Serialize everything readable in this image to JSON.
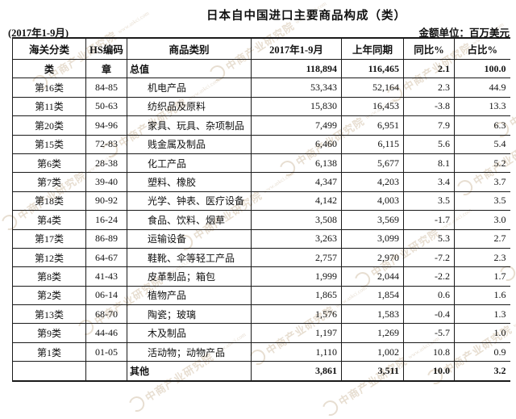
{
  "title": "日本自中国进口主要商品构成（类）",
  "period": "(2017年1-9月)",
  "unit_label": "金额单位：百万美元",
  "watermark": {
    "text": "中商产业研究院",
    "subtext": "www.askci.com",
    "color": "#c7b194"
  },
  "chart_data": {
    "type": "table",
    "title": "日本自中国进口主要商品构成（类）",
    "subtitle": "(2017年1-9月) 金额单位：百万美元",
    "columns": [
      "海关分类",
      "HS编码",
      "商品类别",
      "2017年1-9月",
      "上年同期",
      "同比%",
      "占比%"
    ],
    "rows": [
      {
        "cat": "类",
        "hs": "章",
        "label": "总值",
        "cur": "118,894",
        "prev": "116,465",
        "yoy": "2.1",
        "share": "100.0",
        "bold": true,
        "tight": true
      },
      {
        "cat": "第16类",
        "hs": "84-85",
        "label": "机电产品",
        "cur": "53,343",
        "prev": "52,164",
        "yoy": "2.3",
        "share": "44.9"
      },
      {
        "cat": "第11类",
        "hs": "50-63",
        "label": "纺织品及原料",
        "cur": "15,830",
        "prev": "16,453",
        "yoy": "-3.8",
        "share": "13.3"
      },
      {
        "cat": "第20类",
        "hs": "94-96",
        "label": "家具、玩具、杂项制品",
        "cur": "7,499",
        "prev": "6,951",
        "yoy": "7.9",
        "share": "6.3"
      },
      {
        "cat": "第15类",
        "hs": "72-83",
        "label": "贱金属及制品",
        "cur": "6,460",
        "prev": "6,115",
        "yoy": "5.6",
        "share": "5.4"
      },
      {
        "cat": "第6类",
        "hs": "28-38",
        "label": "化工产品",
        "cur": "6,138",
        "prev": "5,677",
        "yoy": "8.1",
        "share": "5.2"
      },
      {
        "cat": "第7类",
        "hs": "39-40",
        "label": "塑料、橡胶",
        "cur": "4,347",
        "prev": "4,203",
        "yoy": "3.4",
        "share": "3.7"
      },
      {
        "cat": "第18类",
        "hs": "90-92",
        "label": "光学、钟表、医疗设备",
        "cur": "4,142",
        "prev": "4,003",
        "yoy": "3.5",
        "share": "3.5"
      },
      {
        "cat": "第4类",
        "hs": "16-24",
        "label": "食品、饮料、烟草",
        "cur": "3,508",
        "prev": "3,569",
        "yoy": "-1.7",
        "share": "3.0"
      },
      {
        "cat": "第17类",
        "hs": "86-89",
        "label": "运输设备",
        "cur": "3,263",
        "prev": "3,099",
        "yoy": "5.3",
        "share": "2.7"
      },
      {
        "cat": "第12类",
        "hs": "64-67",
        "label": "鞋靴、伞等轻工产品",
        "cur": "2,757",
        "prev": "2,970",
        "yoy": "-7.2",
        "share": "2.3"
      },
      {
        "cat": "第8类",
        "hs": "41-43",
        "label": "皮革制品；箱包",
        "cur": "1,999",
        "prev": "2,044",
        "yoy": "-2.2",
        "share": "1.7"
      },
      {
        "cat": "第2类",
        "hs": "06-14",
        "label": "植物产品",
        "cur": "1,865",
        "prev": "1,854",
        "yoy": "0.6",
        "share": "1.6"
      },
      {
        "cat": "第13类",
        "hs": "68-70",
        "label": "陶瓷；玻璃",
        "cur": "1,576",
        "prev": "1,583",
        "yoy": "-0.4",
        "share": "1.3"
      },
      {
        "cat": "第9类",
        "hs": "44-46",
        "label": "木及制品",
        "cur": "1,197",
        "prev": "1,269",
        "yoy": "-5.7",
        "share": "1.0"
      },
      {
        "cat": "第1类",
        "hs": "01-05",
        "label": "活动物；动物产品",
        "cur": "1,110",
        "prev": "1,002",
        "yoy": "10.8",
        "share": "0.9"
      },
      {
        "cat": "",
        "hs": "",
        "label": "其他",
        "cur": "3,861",
        "prev": "3,511",
        "yoy": "10.0",
        "share": "3.2",
        "bold": true,
        "tight": true
      }
    ]
  }
}
